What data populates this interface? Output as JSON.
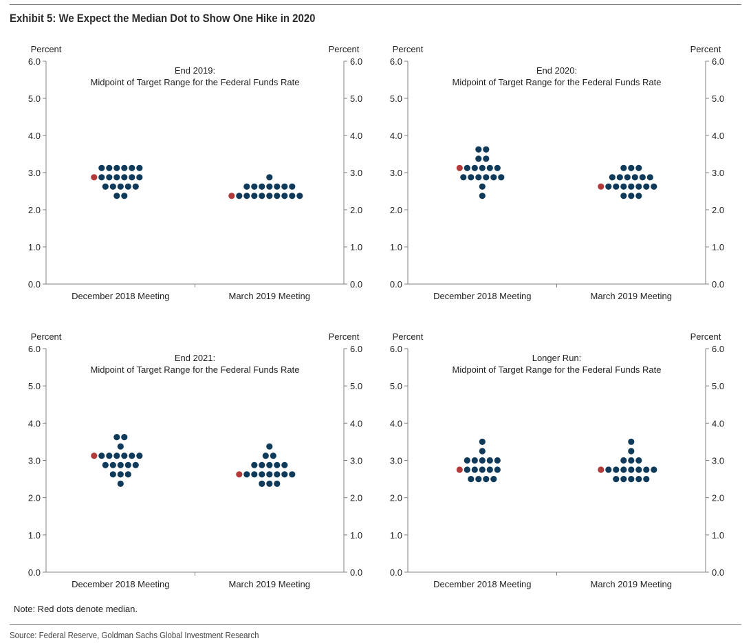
{
  "title": "Exhibit 5: We Expect the Median Dot to Show One Hike in 2020",
  "note": "Note: Red dots denote median.",
  "source": "Source: Federal Reserve, Goldman Sachs Global Investment Research",
  "colors": {
    "dot": "#0f3a5a",
    "median": "#b33a3a",
    "axis": "#7f7f7f"
  },
  "chart_data": [
    {
      "type": "scatter",
      "title": "End 2019:",
      "subtitle": "Midpoint of Target Range for the Federal Funds Rate",
      "left_axis_label": "Percent",
      "right_axis_label": "Percent",
      "ylim": [
        0,
        6
      ],
      "yticks": [
        "0.0",
        "1.0",
        "2.0",
        "3.0",
        "4.0",
        "5.0",
        "6.0"
      ],
      "categories": [
        "December 2018 Meeting",
        "March 2019 Meeting"
      ],
      "grid": false,
      "groups": [
        {
          "category": "December 2018 Meeting",
          "median": 2.875,
          "rows": [
            {
              "y": 3.125,
              "count": 6
            },
            {
              "y": 2.875,
              "count": 6
            },
            {
              "y": 2.625,
              "count": 5
            },
            {
              "y": 2.375,
              "count": 2
            }
          ]
        },
        {
          "category": "March 2019 Meeting",
          "median": 2.375,
          "rows": [
            {
              "y": 2.875,
              "count": 1
            },
            {
              "y": 2.625,
              "count": 7
            },
            {
              "y": 2.375,
              "count": 9
            }
          ]
        }
      ]
    },
    {
      "type": "scatter",
      "title": "End 2020:",
      "subtitle": "Midpoint of Target Range for the Federal Funds Rate",
      "left_axis_label": "Percent",
      "right_axis_label": "Percent",
      "ylim": [
        0,
        6
      ],
      "yticks": [
        "0.0",
        "1.0",
        "2.0",
        "3.0",
        "4.0",
        "5.0",
        "6.0"
      ],
      "categories": [
        "December 2018 Meeting",
        "March 2019 Meeting"
      ],
      "grid": false,
      "groups": [
        {
          "category": "December 2018 Meeting",
          "median": 3.125,
          "rows": [
            {
              "y": 3.625,
              "count": 2
            },
            {
              "y": 3.375,
              "count": 2
            },
            {
              "y": 3.125,
              "count": 5
            },
            {
              "y": 2.875,
              "count": 6
            },
            {
              "y": 2.625,
              "count": 1
            },
            {
              "y": 2.375,
              "count": 1
            }
          ]
        },
        {
          "category": "March 2019 Meeting",
          "median": 2.625,
          "rows": [
            {
              "y": 3.125,
              "count": 3
            },
            {
              "y": 2.875,
              "count": 6
            },
            {
              "y": 2.625,
              "count": 7
            },
            {
              "y": 2.375,
              "count": 3
            }
          ]
        }
      ]
    },
    {
      "type": "scatter",
      "title": "End 2021:",
      "subtitle": "Midpoint of Target Range for the Federal Funds Rate",
      "left_axis_label": "Percent",
      "right_axis_label": "Percent",
      "ylim": [
        0,
        6
      ],
      "yticks": [
        "0.0",
        "1.0",
        "2.0",
        "3.0",
        "4.0",
        "5.0",
        "6.0"
      ],
      "categories": [
        "December 2018 Meeting",
        "March 2019 Meeting"
      ],
      "grid": false,
      "groups": [
        {
          "category": "December 2018 Meeting",
          "median": 3.125,
          "rows": [
            {
              "y": 3.625,
              "count": 2
            },
            {
              "y": 3.375,
              "count": 1
            },
            {
              "y": 3.125,
              "count": 6
            },
            {
              "y": 2.875,
              "count": 5
            },
            {
              "y": 2.625,
              "count": 3
            },
            {
              "y": 2.375,
              "count": 1
            }
          ]
        },
        {
          "category": "March 2019 Meeting",
          "median": 2.625,
          "rows": [
            {
              "y": 3.375,
              "count": 1
            },
            {
              "y": 3.125,
              "count": 2
            },
            {
              "y": 2.875,
              "count": 5
            },
            {
              "y": 2.625,
              "count": 7
            },
            {
              "y": 2.375,
              "count": 3
            }
          ]
        }
      ]
    },
    {
      "type": "scatter",
      "title": "Longer Run:",
      "subtitle": "Midpoint of Target Range for the Federal Funds Rate",
      "left_axis_label": "Percent",
      "right_axis_label": "Percent",
      "ylim": [
        0,
        6
      ],
      "yticks": [
        "0.0",
        "1.0",
        "2.0",
        "3.0",
        "4.0",
        "5.0",
        "6.0"
      ],
      "categories": [
        "December 2018 Meeting",
        "March 2019 Meeting"
      ],
      "grid": false,
      "groups": [
        {
          "category": "December 2018 Meeting",
          "median": 2.75,
          "rows": [
            {
              "y": 3.5,
              "count": 1
            },
            {
              "y": 3.25,
              "count": 1
            },
            {
              "y": 3.0,
              "count": 5
            },
            {
              "y": 2.75,
              "count": 5
            },
            {
              "y": 2.5,
              "count": 4
            }
          ]
        },
        {
          "category": "March 2019 Meeting",
          "median": 2.75,
          "rows": [
            {
              "y": 3.5,
              "count": 1
            },
            {
              "y": 3.25,
              "count": 1
            },
            {
              "y": 3.0,
              "count": 3
            },
            {
              "y": 2.75,
              "count": 7
            },
            {
              "y": 2.5,
              "count": 5
            }
          ]
        }
      ]
    }
  ]
}
